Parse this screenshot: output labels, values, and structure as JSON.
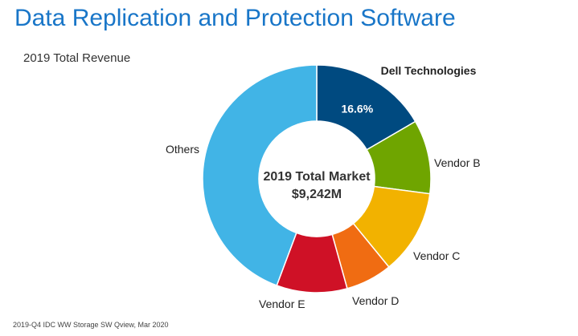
{
  "title": "Data Replication and Protection Software",
  "subtitle": "2019 Total Revenue",
  "source": "2019-Q4 IDC WW Storage SW Qview, Mar 2020",
  "chart_data": {
    "type": "pie",
    "donut": true,
    "center_label": [
      "2019 Total Market",
      "$9,242M"
    ],
    "slices": [
      {
        "label": "Dell Technologies",
        "value": 16.6,
        "data_label": "16.6%",
        "color": "#004a80",
        "bold": true
      },
      {
        "label": "Vendor B",
        "value": 10.5,
        "color": "#6fa500",
        "bold": false
      },
      {
        "label": "Vendor C",
        "value": 12.0,
        "color": "#f2b200",
        "bold": false
      },
      {
        "label": "Vendor D",
        "value": 6.6,
        "color": "#f06c12",
        "bold": false
      },
      {
        "label": "Vendor E",
        "value": 10.0,
        "color": "#cf1126",
        "bold": false
      },
      {
        "label": "Others",
        "value": 44.3,
        "color": "#41b4e6",
        "bold": false
      }
    ]
  }
}
